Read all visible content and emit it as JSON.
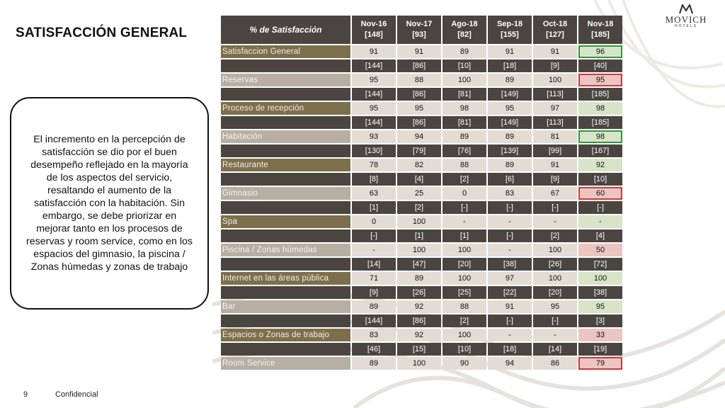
{
  "title": "SATISFACCIÓN GENERAL",
  "logo": {
    "name": "MOVICH",
    "sub": "HOTELS"
  },
  "callout": "El incremento en la percepción de satisfacción se dio por el buen desempeño reflejado en la mayoría de los aspectos del servicio, resaltando el aumento de la satisfacción con la habitación. Sin embargo, se debe priorizar en mejorar tanto en los procesos de reservas y room service, como en los espacios del gimnasio, la piscina / Zonas húmedas y zonas de trabajo",
  "footer": {
    "page": "9",
    "label": "Confidencial"
  },
  "table": {
    "header_label": "% de Satisfacción",
    "columns": [
      {
        "period": "Nov-16",
        "n": "[148]"
      },
      {
        "period": "Nov-17",
        "n": "[93]"
      },
      {
        "period": "Ago-18",
        "n": "[82]"
      },
      {
        "period": "Sep-18",
        "n": "[155]"
      },
      {
        "period": "Oct-18",
        "n": "[127]"
      },
      {
        "period": "Nov-18",
        "n": "[185]"
      }
    ],
    "colors": {
      "dark": "#4a4540",
      "gold": "#7e6f4c",
      "cell": "#e2dcd4",
      "good": "#d8e4c8",
      "bad": "#ecc5c2",
      "good_border": "#2f9a3a",
      "bad_border": "#cc3a3a"
    },
    "rows": [
      {
        "label": "Satisfaccion General",
        "counts": null,
        "values": [
          "91",
          "91",
          "89",
          "91",
          "91",
          "96"
        ],
        "last": "good"
      },
      {
        "label": "Reservas",
        "counts": [
          "[144]",
          "[86]",
          "[10]",
          "[18]",
          "[9]",
          "[40]"
        ],
        "values": [
          "95",
          "88",
          "100",
          "89",
          "100",
          "95"
        ],
        "last": "bad"
      },
      {
        "label": "Proceso de recepción",
        "counts": [
          "[144]",
          "[86]",
          "[81]",
          "[149]",
          "[113]",
          "[185]"
        ],
        "values": [
          "95",
          "95",
          "98",
          "95",
          "97",
          "98"
        ],
        "last": "good-nb"
      },
      {
        "label": "Habitación",
        "counts": [
          "[144]",
          "[86]",
          "[81]",
          "[149]",
          "[113]",
          "[185]"
        ],
        "values": [
          "93",
          "94",
          "89",
          "89",
          "81",
          "98"
        ],
        "last": "good"
      },
      {
        "label": "Restaurante",
        "counts": [
          "[130]",
          "[79]",
          "[76]",
          "[139]",
          "[99]",
          "[167]"
        ],
        "values": [
          "78",
          "82",
          "88",
          "89",
          "91",
          "92"
        ],
        "last": "good-nb"
      },
      {
        "label": "Gimnasio",
        "counts": [
          "[8]",
          "[4]",
          "[2]",
          "[6]",
          "[9]",
          "[10]"
        ],
        "values": [
          "63",
          "25",
          "0",
          "83",
          "67",
          "60"
        ],
        "last": "bad"
      },
      {
        "label": "Spa",
        "counts": [
          "[1]",
          "[2]",
          "[-]",
          "[-]",
          "[-]",
          "[-]"
        ],
        "values": [
          "0",
          "100",
          "-",
          "-",
          "-",
          "-"
        ],
        "last": "good-nb"
      },
      {
        "label": "Piscina / Zonas húmedas",
        "counts": [
          "[-]",
          "[1]",
          "[1]",
          "[-]",
          "[2]",
          "[4]"
        ],
        "values": [
          "-",
          "100",
          "100",
          "-",
          "100",
          "50"
        ],
        "last": "bad-nb"
      },
      {
        "label": "Internet en las áreas pública",
        "counts": [
          "[14]",
          "[47]",
          "[20]",
          "[38]",
          "[26]",
          "[72]"
        ],
        "values": [
          "71",
          "89",
          "100",
          "97",
          "100",
          "100"
        ],
        "last": "good-nb"
      },
      {
        "label": "Bar",
        "counts": [
          "[9]",
          "[26]",
          "[25]",
          "[22]",
          "[20]",
          "[38]"
        ],
        "values": [
          "89",
          "92",
          "88",
          "91",
          "95",
          "95"
        ],
        "last": "good-nb"
      },
      {
        "label": "Espacios o Zonas de trabajo",
        "counts": [
          "[144]",
          "[86]",
          "[2]",
          "[-]",
          "[-]",
          "[3]"
        ],
        "values": [
          "83",
          "92",
          "100",
          "-",
          "-",
          "33"
        ],
        "last": "bad-nb"
      },
      {
        "label": "Room Service",
        "counts": [
          "[46]",
          "[15]",
          "[10]",
          "[18]",
          "[14]",
          "[19]"
        ],
        "values": [
          "89",
          "100",
          "90",
          "94",
          "86",
          "79"
        ],
        "last": "bad"
      }
    ]
  }
}
